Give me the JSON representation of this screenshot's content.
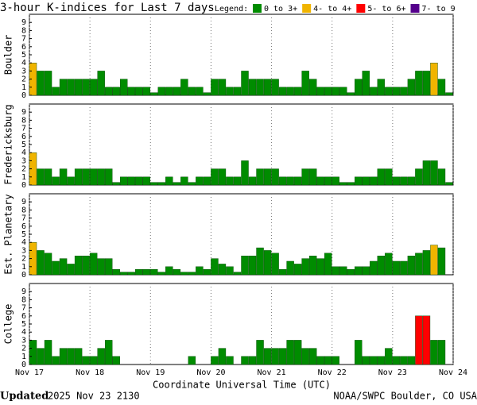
{
  "title": "3-hour K-indices for Last 7 days",
  "legend": {
    "label": "Legend:",
    "items": [
      {
        "name": "0 to 3+",
        "color": "#008c00"
      },
      {
        "name": "4- to 4+",
        "color": "#f0b400"
      },
      {
        "name": "5- to 6+",
        "color": "#ff0000"
      },
      {
        "name": "7- to 9",
        "color": "#55008c"
      }
    ]
  },
  "x_axis": {
    "label": "Coordinate Universal Time (UTC)",
    "xlim": [
      0,
      7
    ],
    "xticks": [
      {
        "value": 0,
        "label": "Nov 17"
      },
      {
        "value": 1,
        "label": "Nov 18"
      },
      {
        "value": 2,
        "label": "Nov 19"
      },
      {
        "value": 3,
        "label": "Nov 20"
      },
      {
        "value": 4,
        "label": "Nov 21"
      },
      {
        "value": 5,
        "label": "Nov 22"
      },
      {
        "value": 6,
        "label": "Nov 23"
      },
      {
        "value": 7,
        "label": "Nov 24"
      }
    ]
  },
  "footer": {
    "updated_label": "Updated",
    "updated_time": "2025 Nov 23 2130",
    "credit": "NOAA/SWPC Boulder, CO USA"
  },
  "chart_data": [
    {
      "type": "bar",
      "ylabel": "Boulder",
      "ylim": [
        0,
        10
      ],
      "yticks": [
        0,
        1,
        2,
        3,
        4,
        5,
        6,
        7,
        8,
        9
      ],
      "values": [
        4,
        3,
        3,
        1,
        2,
        2,
        2,
        2,
        2,
        3,
        1,
        1,
        2,
        1,
        1,
        1,
        0.33,
        1,
        1,
        1,
        2,
        1,
        1,
        0.33,
        2,
        2,
        1,
        1,
        3,
        2,
        2,
        2,
        2,
        1,
        1,
        1,
        3,
        2,
        1,
        1,
        1,
        1,
        0.33,
        2,
        3,
        1,
        2,
        1,
        1,
        1,
        2,
        3,
        3,
        4,
        2,
        0.33
      ],
      "colors": [
        "#f0b400",
        "#008c00",
        "#008c00",
        "#008c00",
        "#008c00",
        "#008c00",
        "#008c00",
        "#008c00",
        "#008c00",
        "#008c00",
        "#008c00",
        "#008c00",
        "#008c00",
        "#008c00",
        "#008c00",
        "#008c00",
        "#008c00",
        "#008c00",
        "#008c00",
        "#008c00",
        "#008c00",
        "#008c00",
        "#008c00",
        "#008c00",
        "#008c00",
        "#008c00",
        "#008c00",
        "#008c00",
        "#008c00",
        "#008c00",
        "#008c00",
        "#008c00",
        "#008c00",
        "#008c00",
        "#008c00",
        "#008c00",
        "#008c00",
        "#008c00",
        "#008c00",
        "#008c00",
        "#008c00",
        "#008c00",
        "#008c00",
        "#008c00",
        "#008c00",
        "#008c00",
        "#008c00",
        "#008c00",
        "#008c00",
        "#008c00",
        "#008c00",
        "#008c00",
        "#008c00",
        "#f0b400",
        "#008c00",
        "#008c00"
      ]
    },
    {
      "type": "bar",
      "ylabel": "Fredericksburg",
      "ylim": [
        0,
        10
      ],
      "yticks": [
        0,
        1,
        2,
        3,
        4,
        5,
        6,
        7,
        8,
        9
      ],
      "values": [
        4,
        2,
        2,
        1,
        2,
        1,
        2,
        2,
        2,
        2,
        2,
        0.33,
        1,
        1,
        1,
        1,
        0.33,
        0.33,
        1,
        0.33,
        1,
        0.33,
        1,
        1,
        2,
        2,
        1,
        1,
        3,
        1,
        2,
        2,
        2,
        1,
        1,
        1,
        2,
        2,
        1,
        1,
        1,
        0.33,
        0.33,
        1,
        1,
        1,
        2,
        2,
        1,
        1,
        1,
        2,
        3,
        3,
        2,
        0.33
      ],
      "colors": [
        "#f0b400",
        "#008c00",
        "#008c00",
        "#008c00",
        "#008c00",
        "#008c00",
        "#008c00",
        "#008c00",
        "#008c00",
        "#008c00",
        "#008c00",
        "#008c00",
        "#008c00",
        "#008c00",
        "#008c00",
        "#008c00",
        "#008c00",
        "#008c00",
        "#008c00",
        "#008c00",
        "#008c00",
        "#008c00",
        "#008c00",
        "#008c00",
        "#008c00",
        "#008c00",
        "#008c00",
        "#008c00",
        "#008c00",
        "#008c00",
        "#008c00",
        "#008c00",
        "#008c00",
        "#008c00",
        "#008c00",
        "#008c00",
        "#008c00",
        "#008c00",
        "#008c00",
        "#008c00",
        "#008c00",
        "#008c00",
        "#008c00",
        "#008c00",
        "#008c00",
        "#008c00",
        "#008c00",
        "#008c00",
        "#008c00",
        "#008c00",
        "#008c00",
        "#008c00",
        "#008c00",
        "#008c00",
        "#008c00",
        "#008c00"
      ]
    },
    {
      "type": "bar",
      "ylabel": "Est. Planetary",
      "ylim": [
        0,
        10
      ],
      "yticks": [
        0,
        1,
        2,
        3,
        4,
        5,
        6,
        7,
        8,
        9
      ],
      "values": [
        4,
        3,
        2.67,
        1.67,
        2,
        1.33,
        2.33,
        2.33,
        2.67,
        2,
        2,
        0.67,
        0.33,
        0.33,
        0.67,
        0.67,
        0.67,
        0.33,
        1,
        0.67,
        0.33,
        0.33,
        1,
        0.67,
        2,
        1.33,
        1,
        0.33,
        2.33,
        2.33,
        3.33,
        3,
        2.67,
        0.67,
        1.67,
        1.33,
        2,
        2.33,
        2,
        2.67,
        1,
        1,
        0.67,
        1,
        1,
        1.67,
        2.33,
        2.67,
        1.67,
        1.67,
        2.33,
        2.67,
        3,
        3.67,
        3.33,
        null
      ],
      "colors": [
        "#f0b400",
        "#008c00",
        "#008c00",
        "#008c00",
        "#008c00",
        "#008c00",
        "#008c00",
        "#008c00",
        "#008c00",
        "#008c00",
        "#008c00",
        "#008c00",
        "#008c00",
        "#008c00",
        "#008c00",
        "#008c00",
        "#008c00",
        "#008c00",
        "#008c00",
        "#008c00",
        "#008c00",
        "#008c00",
        "#008c00",
        "#008c00",
        "#008c00",
        "#008c00",
        "#008c00",
        "#008c00",
        "#008c00",
        "#008c00",
        "#008c00",
        "#008c00",
        "#008c00",
        "#008c00",
        "#008c00",
        "#008c00",
        "#008c00",
        "#008c00",
        "#008c00",
        "#008c00",
        "#008c00",
        "#008c00",
        "#008c00",
        "#008c00",
        "#008c00",
        "#008c00",
        "#008c00",
        "#008c00",
        "#008c00",
        "#008c00",
        "#008c00",
        "#008c00",
        "#008c00",
        "#f0b400",
        "#008c00",
        "#008c00"
      ]
    },
    {
      "type": "bar",
      "ylabel": "College",
      "ylim": [
        0,
        10
      ],
      "yticks": [
        0,
        1,
        2,
        3,
        4,
        5,
        6,
        7,
        8,
        9
      ],
      "values": [
        3,
        2,
        3,
        1,
        2,
        2,
        2,
        1,
        1,
        2,
        3,
        1,
        0,
        0,
        0,
        0,
        0,
        0,
        0,
        0,
        0,
        1,
        0,
        0,
        1,
        2,
        1,
        0,
        1,
        1,
        3,
        2,
        2,
        2,
        3,
        3,
        2,
        2,
        1,
        1,
        1,
        0,
        0,
        3,
        1,
        1,
        1,
        2,
        1,
        1,
        1,
        6,
        6,
        3,
        3,
        null
      ],
      "colors": [
        "#008c00",
        "#008c00",
        "#008c00",
        "#008c00",
        "#008c00",
        "#008c00",
        "#008c00",
        "#008c00",
        "#008c00",
        "#008c00",
        "#008c00",
        "#008c00",
        "#008c00",
        "#008c00",
        "#008c00",
        "#008c00",
        "#008c00",
        "#008c00",
        "#008c00",
        "#008c00",
        "#008c00",
        "#008c00",
        "#008c00",
        "#008c00",
        "#008c00",
        "#008c00",
        "#008c00",
        "#008c00",
        "#008c00",
        "#008c00",
        "#008c00",
        "#008c00",
        "#008c00",
        "#008c00",
        "#008c00",
        "#008c00",
        "#008c00",
        "#008c00",
        "#008c00",
        "#008c00",
        "#008c00",
        "#008c00",
        "#008c00",
        "#008c00",
        "#008c00",
        "#008c00",
        "#008c00",
        "#008c00",
        "#008c00",
        "#008c00",
        "#008c00",
        "#ff0000",
        "#ff0000",
        "#008c00",
        "#008c00",
        "#008c00"
      ]
    }
  ]
}
